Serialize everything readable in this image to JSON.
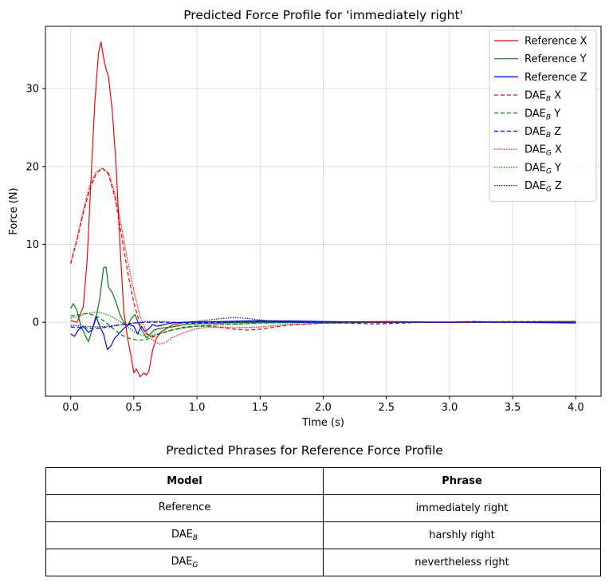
{
  "chart_data": {
    "type": "line",
    "title": "Predicted Force Profile for 'immediately right'",
    "xlabel": "Time (s)",
    "ylabel": "Force (N)",
    "xlim": [
      -0.2,
      4.2
    ],
    "ylim": [
      -9.5,
      38
    ],
    "xticks": [
      0.0,
      0.5,
      1.0,
      1.5,
      2.0,
      2.5,
      3.0,
      3.5,
      4.0
    ],
    "xtick_labels": [
      "0.0",
      "0.5",
      "1.0",
      "1.5",
      "2.0",
      "2.5",
      "3.0",
      "3.5",
      "4.0"
    ],
    "yticks": [
      0,
      10,
      20,
      30
    ],
    "ytick_labels": [
      "0",
      "10",
      "20",
      "30"
    ],
    "grid": true,
    "legend_position": "top-right",
    "series": [
      {
        "name": "Reference X",
        "base": "Reference",
        "sub": "",
        "axis": "X",
        "color": "#ff0000",
        "style": "solid",
        "x": [
          0.0,
          0.05,
          0.1,
          0.13,
          0.16,
          0.19,
          0.22,
          0.24,
          0.26,
          0.28,
          0.3,
          0.33,
          0.36,
          0.39,
          0.42,
          0.45,
          0.48,
          0.5,
          0.52,
          0.55,
          0.58,
          0.6,
          0.62,
          0.65,
          0.68,
          0.72,
          0.76,
          0.8,
          0.85,
          0.9,
          1.0,
          1.2,
          1.5,
          2.0,
          2.5,
          3.0,
          3.5,
          4.0
        ],
        "y": [
          0.2,
          0.0,
          2.0,
          8.0,
          18.0,
          28.0,
          34.5,
          36.0,
          34.0,
          32.5,
          31.5,
          27.0,
          20.0,
          10.0,
          1.5,
          -2.0,
          -4.5,
          -6.5,
          -6.0,
          -7.0,
          -6.5,
          -6.8,
          -6.2,
          -3.5,
          -2.0,
          -1.2,
          -0.8,
          -0.4,
          -0.2,
          0.0,
          0.1,
          0.0,
          0.1,
          0.0,
          0.1,
          0.0,
          0.05,
          0.1
        ]
      },
      {
        "name": "Reference Y",
        "base": "Reference",
        "sub": "",
        "axis": "Y",
        "color": "#008000",
        "style": "solid",
        "x": [
          0.0,
          0.02,
          0.05,
          0.08,
          0.11,
          0.14,
          0.17,
          0.2,
          0.23,
          0.26,
          0.28,
          0.3,
          0.33,
          0.36,
          0.39,
          0.42,
          0.45,
          0.48,
          0.51,
          0.54,
          0.57,
          0.6,
          0.63,
          0.66,
          0.7,
          0.75,
          0.8,
          0.9,
          1.0,
          1.2,
          1.5,
          2.0,
          2.5,
          3.0,
          3.5,
          4.0
        ],
        "y": [
          1.8,
          2.4,
          1.5,
          -0.5,
          -1.5,
          -2.5,
          -1.0,
          0.5,
          3.0,
          7.0,
          7.1,
          4.5,
          3.8,
          2.5,
          1.0,
          0.0,
          -0.5,
          0.5,
          1.0,
          -0.3,
          -1.2,
          -2.0,
          -1.5,
          -1.0,
          -0.8,
          -0.7,
          -0.6,
          -0.3,
          -0.2,
          -0.1,
          0.0,
          0.0,
          0.0,
          0.0,
          0.0,
          0.05
        ]
      },
      {
        "name": "Reference Z",
        "base": "Reference",
        "sub": "",
        "axis": "Z",
        "color": "#0000ff",
        "style": "solid",
        "x": [
          0.0,
          0.03,
          0.06,
          0.1,
          0.14,
          0.17,
          0.2,
          0.23,
          0.26,
          0.29,
          0.32,
          0.35,
          0.38,
          0.42,
          0.46,
          0.5,
          0.53,
          0.56,
          0.59,
          0.62,
          0.65,
          0.68,
          0.72,
          0.76,
          0.8,
          0.9,
          1.0,
          1.2,
          1.5,
          2.0,
          2.5,
          3.0,
          3.5,
          4.0
        ],
        "y": [
          -1.5,
          -1.8,
          -1.0,
          -0.5,
          -1.3,
          -1.0,
          0.8,
          -0.5,
          -1.5,
          -3.5,
          -3.0,
          -2.0,
          -1.5,
          -0.8,
          -0.3,
          -0.5,
          -1.5,
          -0.5,
          -1.2,
          -0.8,
          -0.3,
          -0.5,
          -0.4,
          -0.2,
          -0.1,
          0.0,
          0.0,
          0.1,
          0.2,
          0.1,
          0.0,
          0.0,
          0.0,
          -0.1
        ]
      },
      {
        "name": "DAE_B X",
        "base": "DAE",
        "sub": "B",
        "axis": "X",
        "color": "#ff0000",
        "style": "dashed",
        "x": [
          0.0,
          0.05,
          0.1,
          0.15,
          0.2,
          0.25,
          0.3,
          0.35,
          0.4,
          0.45,
          0.5,
          0.55,
          0.6,
          0.65,
          0.7,
          0.8,
          0.9,
          1.0,
          1.1,
          1.2,
          1.3,
          1.4,
          1.5,
          1.7,
          2.0,
          2.5,
          3.0,
          3.5,
          4.0
        ],
        "y": [
          7.5,
          10.5,
          14.0,
          17.0,
          19.0,
          19.8,
          19.0,
          16.0,
          11.5,
          6.5,
          2.5,
          -0.3,
          -1.5,
          -1.8,
          -1.5,
          -1.0,
          -0.6,
          -0.5,
          -0.5,
          -0.7,
          -0.9,
          -1.0,
          -0.9,
          -0.4,
          -0.1,
          0.0,
          0.0,
          0.05,
          0.1
        ]
      },
      {
        "name": "DAE_B Y",
        "base": "DAE",
        "sub": "B",
        "axis": "Y",
        "color": "#008000",
        "style": "dashed",
        "x": [
          0.0,
          0.05,
          0.1,
          0.15,
          0.2,
          0.25,
          0.3,
          0.35,
          0.4,
          0.45,
          0.5,
          0.55,
          0.6,
          0.65,
          0.7,
          0.8,
          0.9,
          1.0,
          1.2,
          1.5,
          2.0,
          2.5,
          3.0,
          3.5,
          4.0
        ],
        "y": [
          0.8,
          0.9,
          1.1,
          1.1,
          0.8,
          0.3,
          -0.3,
          -1.0,
          -1.6,
          -2.0,
          -2.2,
          -2.3,
          -2.2,
          -1.9,
          -1.5,
          -1.0,
          -0.7,
          -0.5,
          -0.3,
          -0.1,
          0.0,
          0.05,
          0.05,
          0.1,
          0.1
        ]
      },
      {
        "name": "DAE_B Z",
        "base": "DAE",
        "sub": "B",
        "axis": "Z",
        "color": "#0000ff",
        "style": "dashed",
        "x": [
          0.0,
          0.1,
          0.2,
          0.3,
          0.4,
          0.5,
          0.6,
          0.7,
          0.8,
          0.9,
          1.0,
          1.2,
          1.4,
          1.6,
          1.8,
          2.0,
          2.2,
          2.4,
          2.6,
          2.8,
          3.0,
          3.2,
          3.4,
          3.6,
          3.8,
          4.0
        ],
        "y": [
          -0.6,
          -0.7,
          -0.8,
          -0.6,
          -0.3,
          -0.1,
          0.0,
          0.0,
          0.0,
          -0.1,
          -0.1,
          0.0,
          0.1,
          0.1,
          0.0,
          -0.1,
          -0.1,
          -0.2,
          -0.1,
          0.0,
          0.0,
          0.1,
          0.0,
          0.0,
          0.0,
          0.0
        ]
      },
      {
        "name": "DAE_G X",
        "base": "DAE",
        "sub": "G",
        "axis": "X",
        "color": "#ff0000",
        "style": "dotted",
        "x": [
          0.0,
          0.05,
          0.1,
          0.15,
          0.2,
          0.25,
          0.3,
          0.35,
          0.4,
          0.45,
          0.5,
          0.55,
          0.6,
          0.65,
          0.7,
          0.75,
          0.8,
          0.9,
          1.0,
          1.1,
          1.2,
          1.3,
          1.5,
          1.7,
          2.0,
          2.5,
          3.0,
          3.5,
          4.0
        ],
        "y": [
          7.6,
          10.8,
          14.5,
          17.5,
          19.3,
          19.8,
          19.2,
          16.5,
          12.5,
          8.0,
          4.0,
          0.8,
          -1.2,
          -2.3,
          -2.8,
          -2.6,
          -2.0,
          -1.3,
          -0.8,
          -0.6,
          -0.6,
          -0.7,
          -0.6,
          -0.3,
          -0.1,
          0.0,
          0.0,
          0.05,
          0.05
        ]
      },
      {
        "name": "DAE_G Y",
        "base": "DAE",
        "sub": "G",
        "axis": "Y",
        "color": "#008000",
        "style": "dotted",
        "x": [
          0.0,
          0.05,
          0.1,
          0.15,
          0.2,
          0.25,
          0.3,
          0.35,
          0.4,
          0.45,
          0.5,
          0.55,
          0.6,
          0.65,
          0.7,
          0.8,
          0.9,
          1.0,
          1.2,
          1.5,
          2.0,
          2.5,
          3.0,
          3.5,
          4.0
        ],
        "y": [
          0.5,
          0.7,
          1.0,
          1.2,
          1.3,
          1.2,
          0.9,
          0.5,
          0.0,
          -0.6,
          -1.2,
          -1.6,
          -1.8,
          -1.7,
          -1.4,
          -1.0,
          -0.7,
          -0.5,
          -0.3,
          -0.1,
          0.0,
          0.0,
          0.05,
          0.05,
          0.05
        ]
      },
      {
        "name": "DAE_G Z",
        "base": "DAE",
        "sub": "G",
        "axis": "Z",
        "color": "#0000ff",
        "style": "dotted",
        "x": [
          0.0,
          0.1,
          0.2,
          0.3,
          0.4,
          0.5,
          0.6,
          0.7,
          0.8,
          0.9,
          1.0,
          1.1,
          1.2,
          1.3,
          1.4,
          1.5,
          1.6,
          1.8,
          2.0,
          2.5,
          3.0,
          3.5,
          4.0
        ],
        "y": [
          -0.4,
          -0.5,
          -0.6,
          -0.5,
          -0.3,
          -0.1,
          0.1,
          0.1,
          0.0,
          0.0,
          0.1,
          0.3,
          0.5,
          0.6,
          0.5,
          0.3,
          0.1,
          0.0,
          0.0,
          0.0,
          0.0,
          0.0,
          0.0
        ]
      }
    ]
  },
  "table": {
    "title": "Predicted Phrases for Reference Force Profile",
    "headers": [
      "Model",
      "Phrase"
    ],
    "rows": [
      {
        "model": "Reference",
        "model_sub": "",
        "phrase": "immediately right"
      },
      {
        "model": "DAE",
        "model_sub": "B",
        "phrase": "harshly right"
      },
      {
        "model": "DAE",
        "model_sub": "G",
        "phrase": "nevertheless  right"
      }
    ]
  }
}
